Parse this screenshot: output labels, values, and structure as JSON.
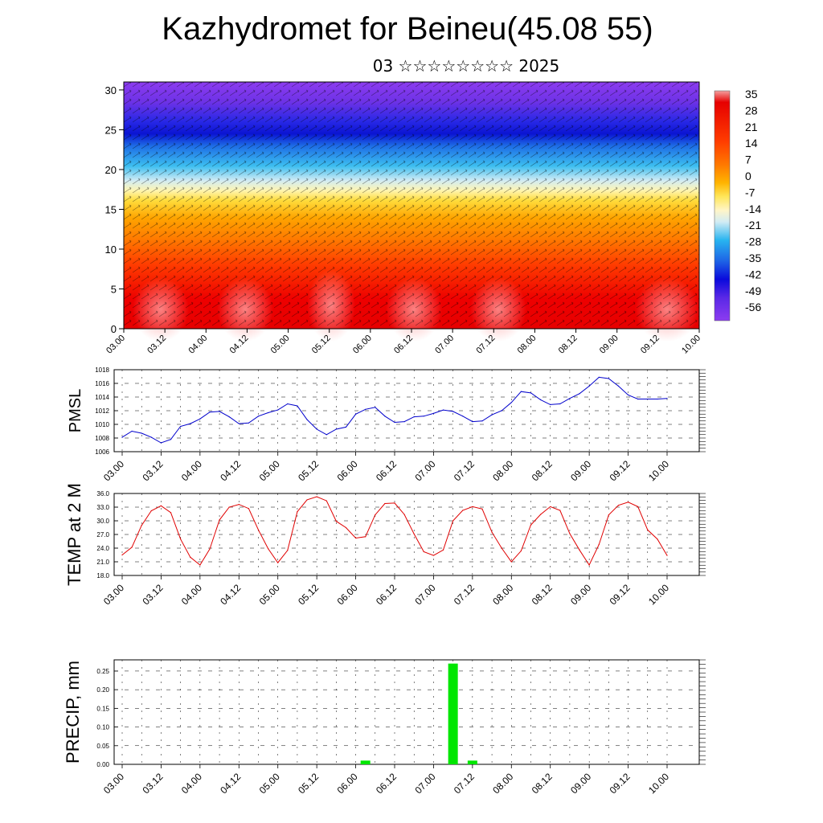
{
  "title": "Kazhydromet for Beineu(45.08 55)",
  "subtitle": "03 ☆☆☆☆☆☆☆☆ 2025",
  "time_labels": [
    "03.00",
    "03.12",
    "04.00",
    "04.12",
    "05.00",
    "05.12",
    "06.00",
    "06.12",
    "07.00",
    "07.12",
    "08.00",
    "08.12",
    "09.00",
    "09.12",
    "10.00"
  ],
  "chart_data": [
    {
      "type": "heatmap",
      "y_ticks": [
        "0",
        "5",
        "10",
        "15",
        "20",
        "25",
        "30"
      ],
      "ylim": [
        0,
        31
      ],
      "colorbar_labels": [
        "35",
        "28",
        "21",
        "14",
        "7",
        "0",
        "-7",
        "-14",
        "-21",
        "-28",
        "-35",
        "-42",
        "-49",
        "-56"
      ],
      "colors": [
        "#f07878",
        "#e60000",
        "#ff5a00",
        "#ffa500",
        "#ffe14b",
        "#c8e6f0",
        "#28b4f0",
        "#0046dc",
        "#1e14e6",
        "#6e28e6",
        "#8c3cf0"
      ]
    },
    {
      "type": "line",
      "ylabel": "PMSL",
      "ylim": [
        1006,
        1018
      ],
      "y_ticks": [
        "1018",
        "1016",
        "1014",
        "1012",
        "1010",
        "1008",
        "1006"
      ],
      "color": "#0000cc",
      "values": [
        1008.1,
        1009.0,
        1008.7,
        1008.1,
        1007.3,
        1007.8,
        1009.7,
        1010.1,
        1010.8,
        1011.8,
        1011.9,
        1011.1,
        1010.1,
        1010.2,
        1011.2,
        1011.7,
        1012.1,
        1013.0,
        1012.7,
        1010.7,
        1009.3,
        1008.5,
        1009.3,
        1009.6,
        1011.5,
        1012.2,
        1012.5,
        1011.2,
        1010.3,
        1010.4,
        1011.1,
        1011.2,
        1011.6,
        1012.1,
        1011.9,
        1011.2,
        1010.4,
        1010.5,
        1011.4,
        1012.0,
        1013.2,
        1014.8,
        1014.6,
        1013.6,
        1012.9,
        1013.0,
        1013.8,
        1014.5,
        1015.6,
        1016.9,
        1016.7,
        1015.6,
        1014.3,
        1013.7,
        1013.7,
        1013.7,
        1013.8
      ]
    },
    {
      "type": "line",
      "ylabel": "TEMP at 2 M",
      "ylim": [
        18,
        36
      ],
      "y_ticks": [
        "36.0",
        "33.0",
        "30.0",
        "27.0",
        "24.0",
        "21.0",
        "18.0"
      ],
      "color": "#e00000",
      "values": [
        22.5,
        24.2,
        29.0,
        32.2,
        33.3,
        31.8,
        26.0,
        22.0,
        20.3,
        23.8,
        30.2,
        33.0,
        33.6,
        32.7,
        28.0,
        23.9,
        20.8,
        23.5,
        32.0,
        34.6,
        35.3,
        34.4,
        29.9,
        28.5,
        26.2,
        26.5,
        31.3,
        33.8,
        33.9,
        31.4,
        27.1,
        23.2,
        22.4,
        23.6,
        30.0,
        32.3,
        33.1,
        32.6,
        27.5,
        24.0,
        21.0,
        23.4,
        29.1,
        31.4,
        33.1,
        32.3,
        27.2,
        23.6,
        20.3,
        24.8,
        31.3,
        33.4,
        34.1,
        33.1,
        28.0,
        26.0,
        22.4
      ]
    },
    {
      "type": "bar",
      "ylabel": "PRECIP, mm",
      "ylim": [
        0,
        0.28
      ],
      "y_ticks": [
        "0.25",
        "0.20",
        "0.15",
        "0.10",
        "0.05",
        "0.00"
      ],
      "color": "#00e600",
      "bars": [
        {
          "t": 25,
          "value": 0.01
        },
        {
          "t": 34,
          "value": 0.27
        },
        {
          "t": 36,
          "value": 0.01
        }
      ]
    }
  ]
}
